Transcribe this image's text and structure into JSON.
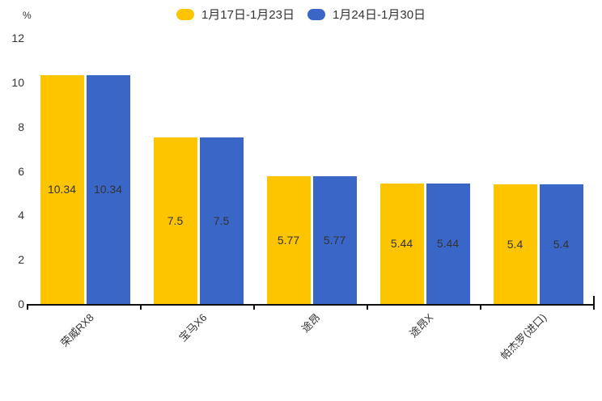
{
  "legend": {
    "items": [
      {
        "label": "1月17日-1月23日",
        "color": "#fdc500"
      },
      {
        "label": "1月24日-1月30日",
        "color": "#3a66c8"
      }
    ]
  },
  "chart_data": {
    "type": "bar",
    "title": "",
    "categories": [
      "荣威RX8",
      "宝马X6",
      "途昂",
      "途昂X",
      "帕杰罗(进口)"
    ],
    "series": [
      {
        "name": "1月17日-1月23日",
        "color": "#fdc500",
        "values": [
          10.34,
          7.5,
          5.77,
          5.44,
          5.4
        ]
      },
      {
        "name": "1月24日-1月30日",
        "color": "#3a66c8",
        "values": [
          10.34,
          7.5,
          5.77,
          5.44,
          5.4
        ]
      }
    ],
    "xlabel": "",
    "ylabel": "%",
    "ylim": [
      0,
      12
    ],
    "yticks": [
      0,
      2,
      4,
      6,
      8,
      10,
      12
    ],
    "grid": false,
    "legend_position": "top-center",
    "value_labels": "inside-center",
    "x_label_rotation_deg": 45,
    "axis_color": "#111111",
    "text_color": "#333333",
    "background_color": "#ffffff"
  }
}
